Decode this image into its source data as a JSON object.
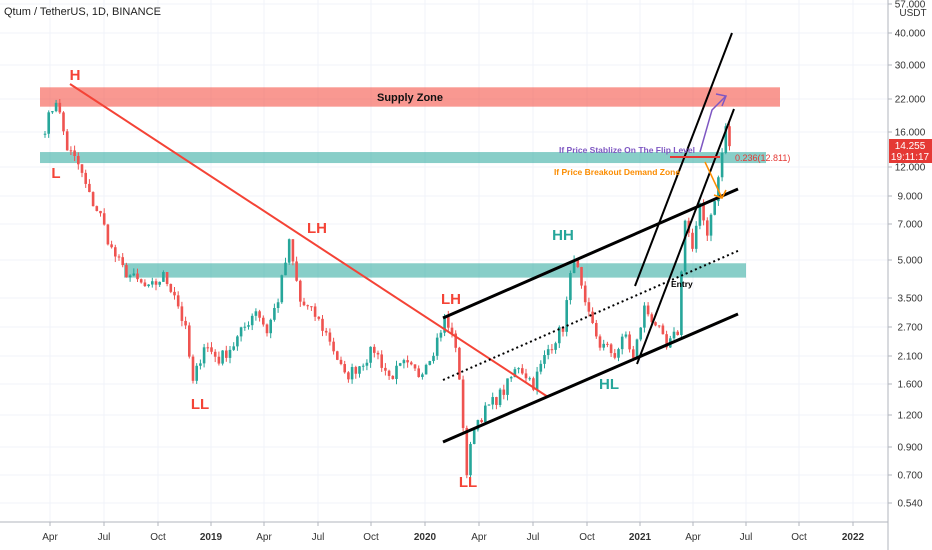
{
  "header": {
    "title": "Qtum / TetherUS, 1D, BINANCE"
  },
  "chart_data": {
    "type": "candlestick",
    "x_axis": [
      "Apr",
      "Jul",
      "Oct",
      "2019",
      "Apr",
      "Jul",
      "Oct",
      "2020",
      "Apr",
      "Jul",
      "Oct",
      "2021",
      "Apr",
      "Jul",
      "Oct",
      "2022"
    ],
    "y_axis": {
      "unit": "USDT",
      "scale": "log",
      "ticks": [
        "57.000",
        "40.000",
        "30.000",
        "22.000",
        "16.000",
        "12.000",
        "9.000",
        "7.000",
        "5.000",
        "3.500",
        "2.700",
        "2.100",
        "1.600",
        "1.200",
        "0.900",
        "0.700",
        "0.540"
      ]
    },
    "last_price": {
      "value": "14.255",
      "countdown": "19:11:17",
      "color": "#e53935"
    },
    "zones": [
      {
        "label": "Supply Zone",
        "low": 20.5,
        "high": 24.5,
        "color": "#f44336"
      },
      {
        "label": "",
        "low": 12.2,
        "high": 13.5,
        "color": "#26a69a"
      },
      {
        "label": "",
        "low": 4.25,
        "high": 4.85,
        "color": "#26a69a"
      }
    ],
    "fib": {
      "label": "0.236(12.811)",
      "value": 12.811
    },
    "pivots": [
      {
        "label": "H",
        "color": "#f44336"
      },
      {
        "label": "L",
        "color": "#f44336"
      },
      {
        "label": "LH",
        "color": "#f44336"
      },
      {
        "label": "LL",
        "color": "#f44336"
      },
      {
        "label": "LH",
        "color": "#f44336"
      },
      {
        "label": "LL",
        "color": "#f44336"
      },
      {
        "label": "HH",
        "color": "#26a69a"
      },
      {
        "label": "HL",
        "color": "#26a69a"
      }
    ],
    "annotations": [
      {
        "text": "If Price Stablize On The Flip Level",
        "color": "#7e57c2"
      },
      {
        "text": "If Price Breakout Demand Zone",
        "color": "#fb8c00"
      },
      {
        "text": "Entry",
        "color": "#000000"
      }
    ],
    "price_anchors": [
      [
        0,
        17
      ],
      [
        3,
        22
      ],
      [
        6,
        14
      ],
      [
        9,
        12
      ],
      [
        12,
        9
      ],
      [
        15,
        7.5
      ],
      [
        18,
        5.5
      ],
      [
        21,
        4.6
      ],
      [
        24,
        4.2
      ],
      [
        28,
        3.8
      ],
      [
        32,
        4.3
      ],
      [
        35,
        3.7
      ],
      [
        38,
        2.6
      ],
      [
        40,
        1.6
      ],
      [
        43,
        2.3
      ],
      [
        47,
        2.0
      ],
      [
        51,
        2.3
      ],
      [
        54,
        2.7
      ],
      [
        57,
        3.2
      ],
      [
        60,
        2.6
      ],
      [
        63,
        3.5
      ],
      [
        66,
        5.8
      ],
      [
        69,
        3.4
      ],
      [
        73,
        3.0
      ],
      [
        77,
        2.4
      ],
      [
        81,
        1.7
      ],
      [
        85,
        1.9
      ],
      [
        89,
        2.2
      ],
      [
        93,
        1.7
      ],
      [
        97,
        1.9
      ],
      [
        101,
        1.75
      ],
      [
        105,
        2.2
      ],
      [
        108,
        2.9
      ],
      [
        111,
        2.3
      ],
      [
        113,
        1.1
      ],
      [
        114,
        0.7
      ],
      [
        116,
        1.1
      ],
      [
        120,
        1.3
      ],
      [
        124,
        1.5
      ],
      [
        128,
        1.9
      ],
      [
        132,
        1.6
      ],
      [
        136,
        2.2
      ],
      [
        140,
        2.7
      ],
      [
        143,
        5.3
      ],
      [
        146,
        3.2
      ],
      [
        150,
        2.3
      ],
      [
        154,
        2.1
      ],
      [
        157,
        2.5
      ],
      [
        159,
        2.0
      ],
      [
        162,
        3.2
      ],
      [
        165,
        2.8
      ],
      [
        168,
        2.2
      ],
      [
        171,
        2.6
      ],
      [
        173,
        7.5
      ],
      [
        175,
        5.5
      ],
      [
        177,
        8.0
      ],
      [
        179,
        6.5
      ],
      [
        182,
        10.5
      ],
      [
        184,
        17.0
      ],
      [
        185,
        14.255
      ]
    ]
  }
}
